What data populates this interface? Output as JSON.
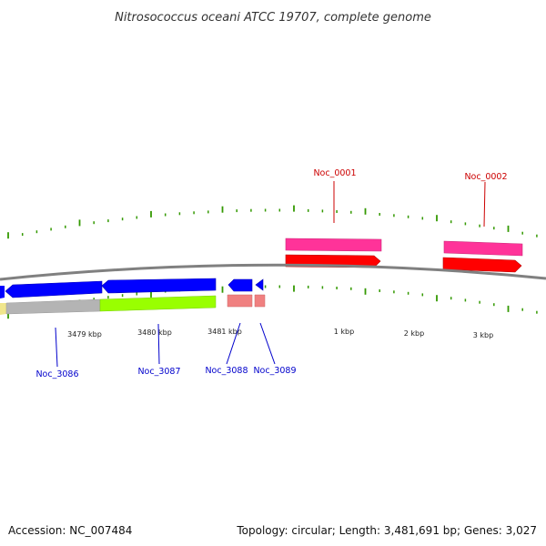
{
  "title": "Nitrosococcus oceani ATCC 19707, complete genome",
  "footer": {
    "accession": "Accession: NC_007484",
    "stats": "Topology: circular; Length: 3,481,691 bp; Genes: 3,027"
  },
  "tick_labels": [
    "3479 kbp",
    "3480 kbp",
    "3481 kbp",
    "1 kbp",
    "2 kbp",
    "3 kbp"
  ],
  "genes": [
    {
      "name": "Noc_0001",
      "strand": "+",
      "color": "#ff0000"
    },
    {
      "name": "Noc_0002",
      "strand": "+",
      "color": "#ff0000"
    },
    {
      "name": "Noc_3086",
      "strand": "-",
      "color": "#0000ff"
    },
    {
      "name": "Noc_3087",
      "strand": "-",
      "color": "#0000ff"
    },
    {
      "name": "Noc_3088",
      "strand": "-",
      "color": "#0000ff"
    },
    {
      "name": "Noc_3089",
      "strand": "-",
      "color": "#0000ff"
    }
  ],
  "colors": {
    "backbone": "#808080",
    "tick": "#339900",
    "cds_forward": "#ff0000",
    "cds_reverse": "#0000ff",
    "cog_forward": "#ff3399",
    "cog_reverse_1": "#b4b4b4",
    "cog_reverse_2": "#99ff00",
    "cog_reverse_3": "#f08080",
    "cog_reverse_0": "#f0e68c"
  }
}
